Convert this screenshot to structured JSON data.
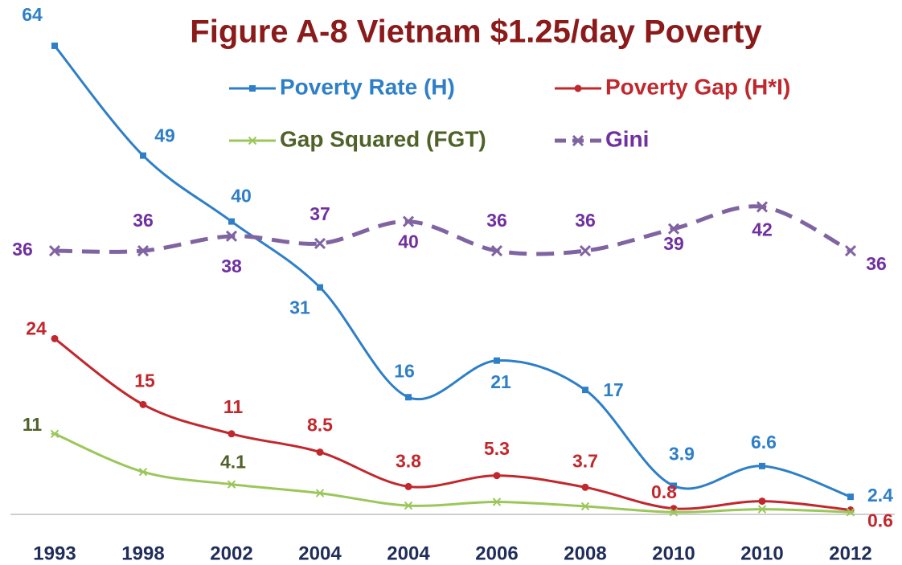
{
  "chart_data": {
    "type": "line",
    "title": "Figure A-8 Vietnam $1.25/day Poverty",
    "categories": [
      "1993",
      "1998",
      "2002",
      "2004",
      "2004",
      "2006",
      "2008",
      "2010",
      "2010",
      "2012"
    ],
    "ylim": [
      0,
      70
    ],
    "series": [
      {
        "name": "Poverty Rate (H)",
        "color": "#2e7fc8",
        "text_color": "#2e7fc8",
        "marker": "square",
        "values": [
          64,
          49,
          40,
          31,
          16,
          21,
          17,
          3.9,
          6.6,
          2.4
        ]
      },
      {
        "name": "Poverty Gap (H*I)",
        "color": "#c0282d",
        "text_color": "#c0282d",
        "marker": "circle",
        "values": [
          24,
          15,
          11,
          8.5,
          3.8,
          5.3,
          3.7,
          0.8,
          1.8,
          0.6
        ],
        "value_labels": [
          "24",
          "15",
          "11",
          "8.5",
          "3.8",
          "5.3",
          "3.7",
          "0.8",
          null,
          "0.6"
        ]
      },
      {
        "name": "Gap Squared (FGT)",
        "color": "#9bc75a",
        "text_color": "#4f6228",
        "marker": "star",
        "values": [
          11,
          5.8,
          4.1,
          2.9,
          1.2,
          1.7,
          1.1,
          0.3,
          0.7,
          0.3
        ],
        "value_labels": [
          "11",
          null,
          "4.1",
          null,
          null,
          null,
          null,
          null,
          null,
          null
        ]
      },
      {
        "name": "Gini",
        "color": "#8064a2",
        "text_color": "#7030a0",
        "marker": "x",
        "dashed": true,
        "values": [
          36,
          36,
          38,
          37,
          40,
          36,
          36,
          39,
          42,
          36
        ]
      }
    ]
  }
}
